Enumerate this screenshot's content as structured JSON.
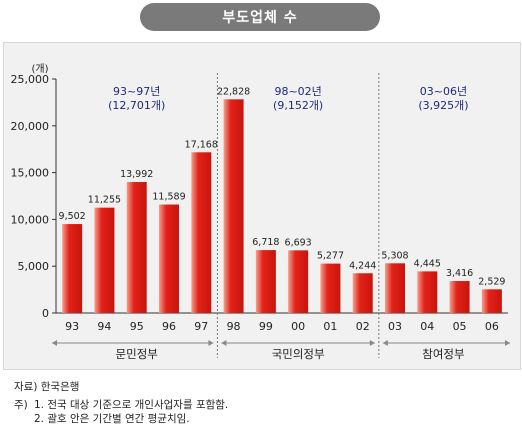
{
  "title": "부도업체 수",
  "chart_data": {
    "type": "bar",
    "unit": "(개)",
    "categories": [
      "93",
      "94",
      "95",
      "96",
      "97",
      "98",
      "99",
      "00",
      "01",
      "02",
      "03",
      "04",
      "05",
      "06"
    ],
    "values": [
      9502,
      11255,
      13992,
      11589,
      17168,
      22828,
      6718,
      6693,
      5277,
      4244,
      5308,
      4445,
      3416,
      2529
    ],
    "value_labels": [
      "9,502",
      "11,255",
      "13,992",
      "11,589",
      "17,168",
      "22,828",
      "6,718",
      "6,693",
      "5,277",
      "4,244",
      "5,308",
      "4,445",
      "3,416",
      "2,529"
    ],
    "yticks": [
      0,
      5000,
      10000,
      15000,
      20000,
      25000
    ],
    "ytick_labels": [
      "0",
      "5,000",
      "10,000",
      "15,000",
      "20,000",
      "25,000"
    ],
    "ylim": [
      0,
      25000
    ],
    "periods": [
      {
        "name": "문민정부",
        "years": "93~97년",
        "avg": "(12,701개)",
        "start": 0,
        "end": 4
      },
      {
        "name": "국민의정부",
        "years": "98~02년",
        "avg": "(9,152개)",
        "start": 5,
        "end": 9
      },
      {
        "name": "참여정부",
        "years": "03~06년",
        "avg": "(3,925개)",
        "start": 10,
        "end": 13
      }
    ],
    "colors": {
      "bar": "#e2231a",
      "bar_highlight": "#f5a08c",
      "period_text": "#1f2a7a",
      "axis": "#333333",
      "divider": "#777777"
    }
  },
  "source": "자료) 한국은행",
  "notes": {
    "prefix": "주)",
    "items": [
      "1. 전국 대상 기준으로 개인사업자를 포함함.",
      "2. 괄호 안은 기간별 연간 평균치임."
    ]
  }
}
